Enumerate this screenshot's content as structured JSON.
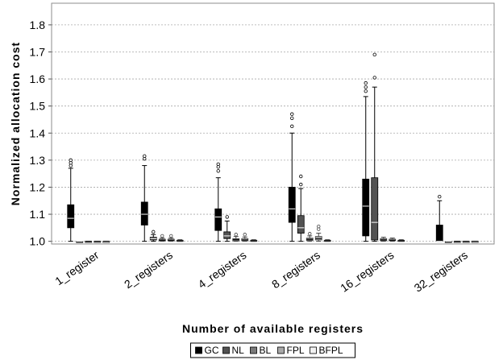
{
  "chart_data": {
    "type": "box",
    "xlabel": "Number of available registers",
    "ylabel": "Normalized allocation cost",
    "ylim": [
      0.99,
      1.88
    ],
    "yticks": [
      "1.0",
      "1.1",
      "1.2",
      "1.3",
      "1.4",
      "1.5",
      "1.6",
      "1.7",
      "1.8"
    ],
    "grid": true,
    "legend_position": "bottom-center",
    "categories": [
      "1_register",
      "2_registers",
      "4_registers",
      "8_registers",
      "16_registers",
      "32_registers"
    ],
    "series": [
      {
        "name": "GC",
        "color": "#000000",
        "boxes": [
          {
            "min": 1.0,
            "q1": 1.05,
            "median": 1.085,
            "q3": 1.135,
            "max": 1.27,
            "outliers": [
              1.28,
              1.29,
              1.3
            ]
          },
          {
            "min": 1.0,
            "q1": 1.06,
            "median": 1.1,
            "q3": 1.145,
            "max": 1.28,
            "outliers": [
              1.305,
              1.315
            ]
          },
          {
            "min": 1.0,
            "q1": 1.04,
            "median": 1.09,
            "q3": 1.12,
            "max": 1.235,
            "outliers": [
              1.26,
              1.275,
              1.285
            ]
          },
          {
            "min": 1.0,
            "q1": 1.07,
            "median": 1.12,
            "q3": 1.2,
            "max": 1.4,
            "outliers": [
              1.425,
              1.455,
              1.47
            ]
          },
          {
            "min": 1.0,
            "q1": 1.02,
            "median": 1.13,
            "q3": 1.23,
            "max": 1.535,
            "outliers": [
              1.555,
              1.57,
              1.585
            ]
          },
          {
            "min": 1.0,
            "q1": 1.0,
            "median": 1.0,
            "q3": 1.06,
            "max": 1.15,
            "outliers": [
              1.165
            ]
          }
        ]
      },
      {
        "name": "NL",
        "color": "#525252",
        "boxes": [
          {
            "min": 1.0,
            "q1": 1.0,
            "median": 1.0,
            "q3": 1.0,
            "max": 1.0,
            "outliers": []
          },
          {
            "min": 1.0,
            "q1": 1.005,
            "median": 1.01,
            "q3": 1.015,
            "max": 1.025,
            "outliers": [
              1.035
            ]
          },
          {
            "min": 1.0,
            "q1": 1.01,
            "median": 1.02,
            "q3": 1.035,
            "max": 1.075,
            "outliers": [
              1.09
            ]
          },
          {
            "min": 1.0,
            "q1": 1.03,
            "median": 1.05,
            "q3": 1.095,
            "max": 1.195,
            "outliers": [
              1.21,
              1.24
            ]
          },
          {
            "min": 1.0,
            "q1": 1.005,
            "median": 1.07,
            "q3": 1.235,
            "max": 1.57,
            "outliers": [
              1.605,
              1.69
            ]
          },
          {
            "min": 1.0,
            "q1": 1.0,
            "median": 1.0,
            "q3": 1.0,
            "max": 1.0,
            "outliers": []
          }
        ]
      },
      {
        "name": "BL",
        "color": "#7a7a7a",
        "boxes": [
          {
            "min": 1.0,
            "q1": 1.0,
            "median": 1.0,
            "q3": 1.0,
            "max": 1.0,
            "outliers": []
          },
          {
            "min": 1.0,
            "q1": 1.002,
            "median": 1.004,
            "q3": 1.008,
            "max": 1.012,
            "outliers": [
              1.02
            ]
          },
          {
            "min": 1.0,
            "q1": 1.002,
            "median": 1.006,
            "q3": 1.01,
            "max": 1.018,
            "outliers": [
              1.025
            ]
          },
          {
            "min": 1.0,
            "q1": 1.003,
            "median": 1.007,
            "q3": 1.012,
            "max": 1.02,
            "outliers": [
              1.028
            ]
          },
          {
            "min": 1.0,
            "q1": 1.002,
            "median": 1.005,
            "q3": 1.01,
            "max": 1.015,
            "outliers": []
          },
          {
            "min": 1.0,
            "q1": 1.0,
            "median": 1.0,
            "q3": 1.0,
            "max": 1.0,
            "outliers": []
          }
        ]
      },
      {
        "name": "FPL",
        "color": "#a9a9a9",
        "boxes": [
          {
            "min": 1.0,
            "q1": 1.0,
            "median": 1.0,
            "q3": 1.0,
            "max": 1.0,
            "outliers": []
          },
          {
            "min": 1.0,
            "q1": 1.002,
            "median": 1.004,
            "q3": 1.008,
            "max": 1.012,
            "outliers": [
              1.02
            ]
          },
          {
            "min": 1.0,
            "q1": 1.002,
            "median": 1.005,
            "q3": 1.01,
            "max": 1.016,
            "outliers": [
              1.025
            ]
          },
          {
            "min": 1.0,
            "q1": 1.005,
            "median": 1.01,
            "q3": 1.018,
            "max": 1.03,
            "outliers": [
              1.045,
              1.055
            ]
          },
          {
            "min": 1.0,
            "q1": 1.002,
            "median": 1.004,
            "q3": 1.008,
            "max": 1.012,
            "outliers": []
          },
          {
            "min": 1.0,
            "q1": 1.0,
            "median": 1.0,
            "q3": 1.0,
            "max": 1.0,
            "outliers": []
          }
        ]
      },
      {
        "name": "BFPL",
        "color": "#f2f2f2",
        "boxes": [
          {
            "min": 1.0,
            "q1": 1.0,
            "median": 1.0,
            "q3": 1.0,
            "max": 1.0,
            "outliers": []
          },
          {
            "min": 1.0,
            "q1": 1.0,
            "median": 1.002,
            "q3": 1.004,
            "max": 1.006,
            "outliers": []
          },
          {
            "min": 1.0,
            "q1": 1.0,
            "median": 1.002,
            "q3": 1.004,
            "max": 1.006,
            "outliers": []
          },
          {
            "min": 1.0,
            "q1": 1.0,
            "median": 1.002,
            "q3": 1.004,
            "max": 1.006,
            "outliers": []
          },
          {
            "min": 1.0,
            "q1": 1.0,
            "median": 1.002,
            "q3": 1.004,
            "max": 1.006,
            "outliers": []
          },
          {
            "min": 1.0,
            "q1": 1.0,
            "median": 1.0,
            "q3": 1.0,
            "max": 1.0,
            "outliers": []
          }
        ]
      }
    ]
  }
}
